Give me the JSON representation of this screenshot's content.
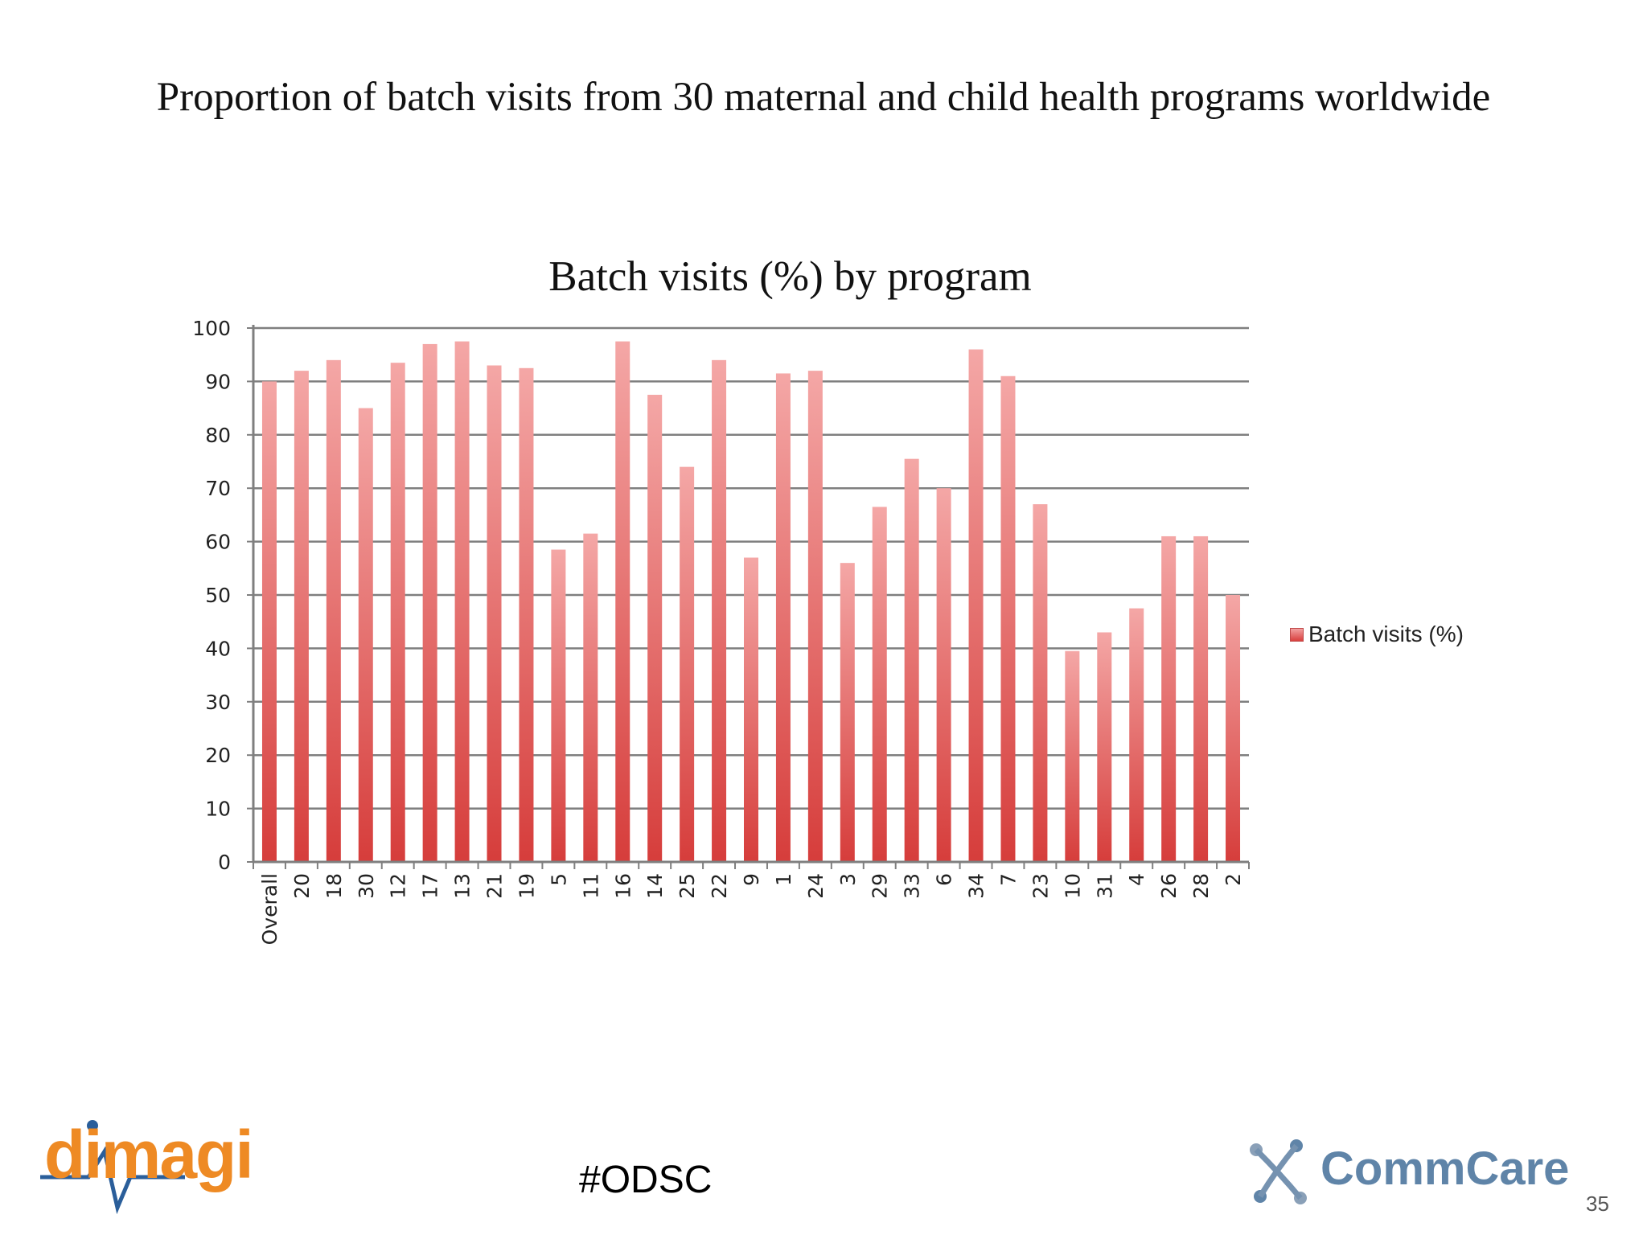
{
  "slide": {
    "title": "Proportion of batch visits from 30 maternal and child health programs worldwide",
    "hashtag": "#ODSC",
    "page_number": "35",
    "logos": {
      "left": "dimagi",
      "right": "CommCare"
    }
  },
  "colors": {
    "bar_top": "#f4a7a6",
    "bar_bottom": "#d63d3b",
    "grid": "#7f7f7f",
    "dimagi_orange": "#ee8a24",
    "commcare_blue": "#5f84a8"
  },
  "chart_data": {
    "type": "bar",
    "title": "Batch visits (%) by program",
    "xlabel": "",
    "ylabel": "",
    "ylim": [
      0,
      100
    ],
    "yticks": [
      0,
      10,
      20,
      30,
      40,
      50,
      60,
      70,
      80,
      90,
      100
    ],
    "grid": true,
    "legend_position": "right",
    "categories": [
      "Overall",
      "20",
      "18",
      "30",
      "12",
      "17",
      "13",
      "21",
      "19",
      "5",
      "11",
      "16",
      "14",
      "25",
      "22",
      "9",
      "1",
      "24",
      "3",
      "29",
      "33",
      "6",
      "34",
      "7",
      "23",
      "10",
      "31",
      "4",
      "26",
      "28",
      "2"
    ],
    "series": [
      {
        "name": "Batch visits (%)",
        "values": [
          90,
          92,
          94,
          85,
          93.5,
          97,
          97.5,
          93,
          92.5,
          58.5,
          61.5,
          97.5,
          87.5,
          74,
          94,
          57,
          91.5,
          92,
          56,
          66.5,
          75.5,
          70,
          96,
          91,
          67,
          39.5,
          43,
          47.5,
          61,
          61,
          50
        ]
      }
    ]
  }
}
